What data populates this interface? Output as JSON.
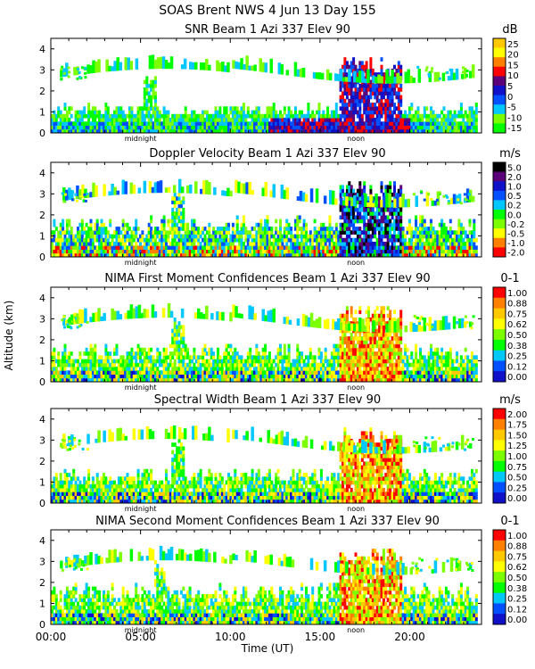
{
  "figure": {
    "title": "SOAS Brent NWS    4 Jun 13 Day 155",
    "ylabel": "Altitude (km)",
    "xlabel": "Time (UT)",
    "marker_midnight": "midnight",
    "marker_noon": "noon"
  },
  "chart_data": [
    {
      "type": "heatmap",
      "title": "SNR Beam 1 Azi 337 Elev 90",
      "unit": "dB",
      "ylim": [
        0,
        4.5
      ],
      "yticks": [
        "0",
        "1",
        "2",
        "3",
        "4"
      ],
      "colorbar": [
        "25",
        "20",
        "15",
        "10",
        "5",
        "0",
        "-5",
        "-10",
        "-15"
      ],
      "colors": [
        "#ffc800",
        "#ffff00",
        "#ff8000",
        "#ff0000",
        "#5a0078",
        "#1010c8",
        "#0050ff",
        "#00c8ff",
        "#7cff00",
        "#00ff00"
      ],
      "layer_top_km": 1.2,
      "events_km": [
        {
          "hour": 5.5,
          "top": 2.7
        },
        {
          "hour": 16.8,
          "top": 3.5
        }
      ]
    },
    {
      "type": "heatmap",
      "title": "Doppler Velocity Beam 1 Azi 337 Elev 90",
      "unit": "m/s",
      "ylim": [
        0,
        4.5
      ],
      "yticks": [
        "0",
        "1",
        "2",
        "3",
        "4"
      ],
      "colorbar": [
        "5.0",
        "2.0",
        "1.0",
        "0.5",
        "0.2",
        "0.0",
        "-0.2",
        "-0.5",
        "-1.0",
        "-2.0"
      ],
      "colors": [
        "#000000",
        "#5a0078",
        "#1010c8",
        "#0050ff",
        "#00c8ff",
        "#00ff00",
        "#7cff00",
        "#ffff00",
        "#ff8000",
        "#ff0000"
      ],
      "layer_top_km": 1.7,
      "events_km": [
        {
          "hour": 7.0,
          "top": 3.0
        },
        {
          "hour": 17.5,
          "top": 3.6
        }
      ]
    },
    {
      "type": "heatmap",
      "title": "NIMA First Moment Confidences Beam 1 Azi 337 Elev 90",
      "unit": "0-1",
      "ylim": [
        0,
        4.5
      ],
      "yticks": [
        "0",
        "1",
        "2",
        "3",
        "4"
      ],
      "colorbar": [
        "1.00",
        "0.88",
        "0.75",
        "0.62",
        "0.50",
        "0.38",
        "0.25",
        "0.12",
        "0.00"
      ],
      "colors": [
        "#ff0000",
        "#ff8000",
        "#ffc800",
        "#ffff00",
        "#7cff00",
        "#00ff00",
        "#00c8ff",
        "#0050ff",
        "#1010c8"
      ],
      "layer_top_km": 1.6,
      "events_km": [
        {
          "hour": 7.0,
          "top": 3.0
        },
        {
          "hour": 17.5,
          "top": 3.6
        }
      ]
    },
    {
      "type": "heatmap",
      "title": "Spectral Width Beam 1 Azi 337 Elev 90",
      "unit": "m/s",
      "ylim": [
        0,
        4.5
      ],
      "yticks": [
        "0",
        "1",
        "2",
        "3",
        "4"
      ],
      "colorbar": [
        "2.00",
        "1.75",
        "1.50",
        "1.25",
        "1.00",
        "0.75",
        "0.50",
        "0.25",
        "0.00"
      ],
      "colors": [
        "#ff0000",
        "#ff8000",
        "#ffc800",
        "#ffff00",
        "#7cff00",
        "#00ff00",
        "#00c8ff",
        "#0050ff",
        "#1010c8"
      ],
      "layer_top_km": 1.4,
      "events_km": [
        {
          "hour": 7.0,
          "top": 3.0
        },
        {
          "hour": 17.5,
          "top": 3.6
        }
      ]
    },
    {
      "type": "heatmap",
      "title": "NIMA Second Moment Confidences Beam 1 Azi 337 Elev 90",
      "unit": "0-1",
      "ylim": [
        0,
        4.5
      ],
      "yticks": [
        "0",
        "1",
        "2",
        "3",
        "4"
      ],
      "colorbar": [
        "1.00",
        "0.88",
        "0.75",
        "0.62",
        "0.50",
        "0.38",
        "0.25",
        "0.12",
        "0.00"
      ],
      "colors": [
        "#ff0000",
        "#ff8000",
        "#ffc800",
        "#ffff00",
        "#7cff00",
        "#00ff00",
        "#00c8ff",
        "#0050ff",
        "#1010c8"
      ],
      "layer_top_km": 1.7,
      "events_km": [
        {
          "hour": 6.0,
          "top": 3.0
        },
        {
          "hour": 17.3,
          "top": 3.6
        }
      ]
    }
  ],
  "xaxis": {
    "range_hours": [
      0,
      24
    ],
    "ticks": [
      {
        "hour": 0,
        "label": "00:00"
      },
      {
        "hour": 5,
        "label": "05:00"
      },
      {
        "hour": 10,
        "label": "10:00"
      },
      {
        "hour": 15,
        "label": "15:00"
      },
      {
        "hour": 20,
        "label": "20:00"
      }
    ],
    "midnight_hour": 5.0,
    "noon_hour": 17.0
  }
}
